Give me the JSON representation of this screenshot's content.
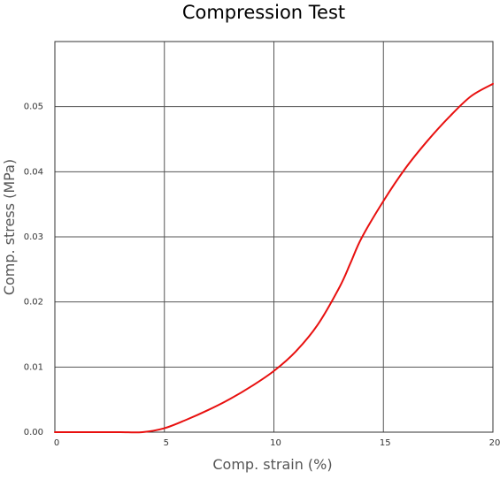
{
  "chart_data": {
    "type": "line",
    "title": "Compression Test",
    "xlabel": "Comp. strain (%)",
    "ylabel": "Comp. stress (MPa)",
    "xlim": [
      0,
      20
    ],
    "ylim": [
      0,
      0.06
    ],
    "x_ticks": [
      0,
      5,
      10,
      15,
      20
    ],
    "x_tick_labels": [
      "0",
      "5",
      "10",
      "15",
      "20"
    ],
    "y_ticks": [
      0,
      0.01,
      0.02,
      0.03,
      0.04,
      0.05
    ],
    "y_tick_labels": [
      "0.00",
      "0.01",
      "0.02",
      "0.03",
      "0.04",
      "0.05"
    ],
    "grid": true,
    "legend": false,
    "series": [
      {
        "color": "#e8100f",
        "x": [
          0,
          1,
          2,
          3,
          4,
          5,
          6,
          7,
          8,
          9,
          10,
          11,
          12,
          13,
          13.5,
          14,
          15,
          16,
          17,
          18,
          19,
          20
        ],
        "y": [
          0,
          0,
          0,
          0,
          0,
          0.0006,
          0.0019,
          0.0034,
          0.0051,
          0.0071,
          0.0094,
          0.0124,
          0.0165,
          0.0223,
          0.026,
          0.0298,
          0.0355,
          0.0405,
          0.0447,
          0.0484,
          0.0516,
          0.0535
        ]
      }
    ]
  }
}
